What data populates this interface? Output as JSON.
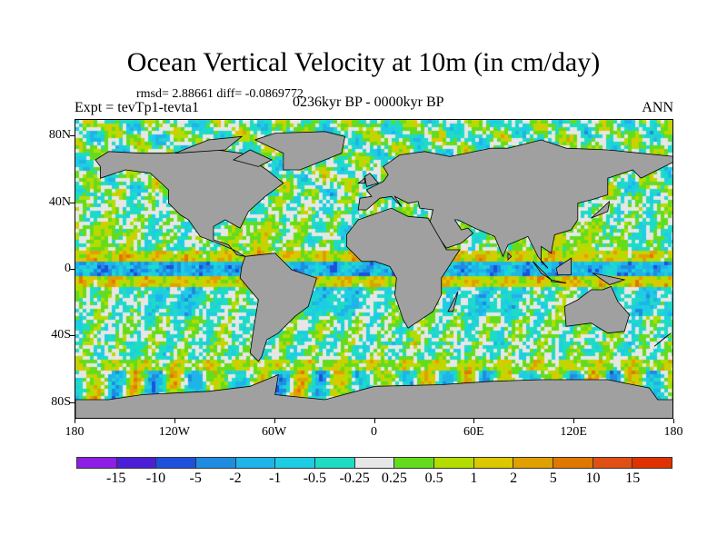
{
  "title": "Ocean Vertical Velocity at 10m (in cm/day)",
  "stats": "rmsd= 2.88661 diff= -0.0869772",
  "experiment": "Expt = tevTp1-tevta1",
  "period": "0236kyr BP - 0000kyr BP",
  "season": "ANN",
  "lat_labels": [
    "80N",
    "40N",
    "0",
    "40S",
    "80S"
  ],
  "lat_values": [
    80,
    40,
    0,
    -40,
    -80
  ],
  "lon_labels": [
    "180",
    "120W",
    "60W",
    "0",
    "60E",
    "120E",
    "180"
  ],
  "lon_values": [
    -180,
    -120,
    -60,
    0,
    60,
    120,
    180
  ],
  "colorbar": {
    "labels": [
      "-15",
      "-10",
      "-5",
      "-2",
      "-1",
      "-0.5",
      "-0.25",
      "0.25",
      "0.5",
      "1",
      "2",
      "5",
      "10",
      "15"
    ],
    "colors": [
      "#8c1ee6",
      "#4b1ed7",
      "#1e50dc",
      "#1e8ce0",
      "#1eb4e8",
      "#1ecde3",
      "#1edcc3",
      "#e6e6e6",
      "#64dc1e",
      "#b4dc00",
      "#dcc800",
      "#e0a000",
      "#e07800",
      "#e05014",
      "#e03200"
    ]
  },
  "land_color": "#a0a0a0"
}
